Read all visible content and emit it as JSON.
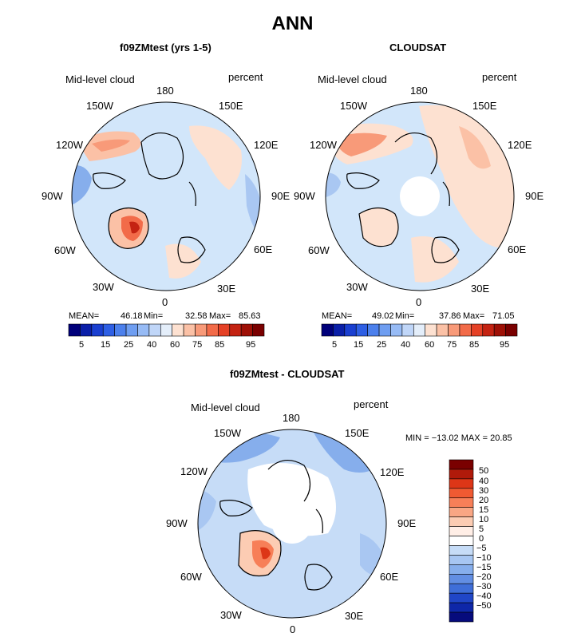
{
  "main_title": "ANN",
  "colors": {
    "ocean_base": "#d2e6fa",
    "land_line": "#000000",
    "positive_palette": [
      "#fde1d1",
      "#fbc1a6",
      "#f89a79",
      "#f26b49",
      "#e54126",
      "#c42312",
      "#9e1006",
      "#7a0000"
    ],
    "negative_palette": [
      "#c6dcf7",
      "#a9c7f2",
      "#86aeec",
      "#628ee3",
      "#3f6ed8",
      "#2046c7",
      "#0e27a8",
      "#060b7c"
    ]
  },
  "panels": [
    {
      "id": "model",
      "title": "f09ZMtest (yrs 1-5)",
      "variable": "Mid-level cloud",
      "units": "percent",
      "lon_labels": [
        "180",
        "150E",
        "120E",
        "90E",
        "60E",
        "30E",
        "0",
        "30W",
        "60W",
        "90W",
        "120W",
        "150W"
      ],
      "stats": {
        "mean_label": "MEAN=",
        "mean": "46.18",
        "min_label": "Min=",
        "min": "32.58",
        "max_label": "Max=",
        "max": "85.63"
      },
      "colorbar_ticks": [
        "5",
        "15",
        "25",
        "40",
        "60",
        "75",
        "85",
        "95"
      ]
    },
    {
      "id": "obs",
      "title": "CLOUDSAT",
      "variable": "Mid-level cloud",
      "units": "percent",
      "lon_labels": [
        "180",
        "150E",
        "120E",
        "90E",
        "60E",
        "30E",
        "0",
        "30W",
        "60W",
        "90W",
        "120W",
        "150W"
      ],
      "stats": {
        "mean_label": "MEAN=",
        "mean": "49.02",
        "min_label": "Min=",
        "min": "37.86",
        "max_label": "Max=",
        "max": "71.05"
      },
      "colorbar_ticks": [
        "5",
        "15",
        "25",
        "40",
        "60",
        "75",
        "85",
        "95"
      ]
    },
    {
      "id": "diff",
      "title": "f09ZMtest - CLOUDSAT",
      "variable": "Mid-level cloud",
      "units": "percent",
      "lon_labels": [
        "180",
        "150E",
        "120E",
        "90E",
        "60E",
        "30E",
        "0",
        "30W",
        "60W",
        "90W",
        "120W",
        "150W"
      ],
      "stats_text": "MIN = −13.02 MAX =   20.85",
      "colorbar_ticks": [
        "50",
        "40",
        "30",
        "20",
        "15",
        "10",
        "5",
        "0",
        "−5",
        "−10",
        "−15",
        "−20",
        "−30",
        "−40",
        "−50"
      ]
    }
  ],
  "seq_palette": [
    "#00007a",
    "#0a1fa8",
    "#1a3fd0",
    "#2e5fe4",
    "#4c80ec",
    "#6f9ef1",
    "#97bbf5",
    "#c0d6f8",
    "#e4eefa",
    "#fde1d1",
    "#fbc1a6",
    "#f89a79",
    "#f26b49",
    "#e54126",
    "#c42312",
    "#9e1006",
    "#7a0000"
  ],
  "div_palette": [
    "#7a0000",
    "#b01a0a",
    "#dd3617",
    "#f05a32",
    "#f77f58",
    "#f9a684",
    "#fcccb3",
    "#ffeee6",
    "#ffffff",
    "#c6dcf7",
    "#a7c6f2",
    "#86aeec",
    "#628ee3",
    "#3f6ed8",
    "#2046c7",
    "#0e27a8",
    "#060b7c"
  ]
}
